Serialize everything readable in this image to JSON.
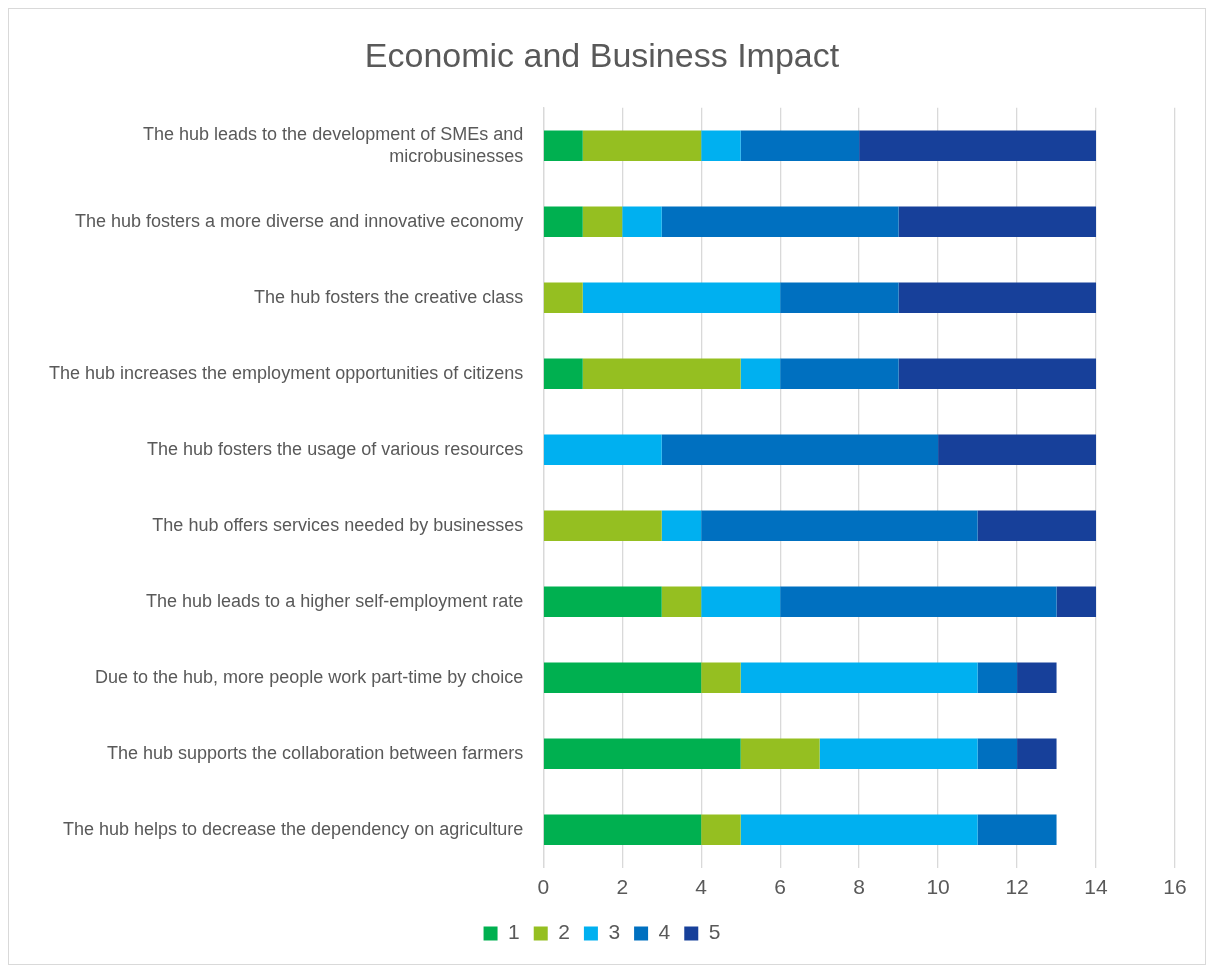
{
  "chart_data": {
    "type": "bar",
    "orientation": "horizontal",
    "stacked": true,
    "title": "Economic and Business Impact",
    "categories": [
      "The hub leads to the development of SMEs and microbusinesses",
      "The hub fosters a more diverse and innovative economy",
      "The hub fosters the creative class",
      "The hub increases the employment opportunities of citizens",
      "The hub fosters the usage of various resources",
      "The hub offers services needed by businesses",
      "The hub leads to a higher self-employment rate",
      "Due to the hub, more people work part-time by choice",
      "The hub supports the collaboration between farmers",
      "The hub helps to decrease the dependency on agriculture"
    ],
    "series": [
      {
        "name": "1",
        "color": "#00b050",
        "values": [
          1,
          1,
          0,
          1,
          0,
          0,
          3,
          4,
          5,
          4
        ]
      },
      {
        "name": "2",
        "color": "#95bf21",
        "values": [
          3,
          1,
          1,
          4,
          0,
          3,
          1,
          1,
          2,
          1
        ]
      },
      {
        "name": "3",
        "color": "#00b0f0",
        "values": [
          1,
          1,
          5,
          1,
          3,
          1,
          2,
          6,
          4,
          6
        ]
      },
      {
        "name": "4",
        "color": "#0070c0",
        "values": [
          3,
          6,
          3,
          3,
          7,
          7,
          7,
          1,
          1,
          2
        ]
      },
      {
        "name": "5",
        "color": "#17409a",
        "values": [
          6,
          5,
          5,
          5,
          4,
          3,
          1,
          1,
          1,
          0
        ]
      }
    ],
    "xlim": [
      0,
      16
    ],
    "xticks": [
      0,
      2,
      4,
      6,
      8,
      10,
      12,
      14,
      16
    ],
    "grid": "x",
    "legend": "bottom"
  }
}
